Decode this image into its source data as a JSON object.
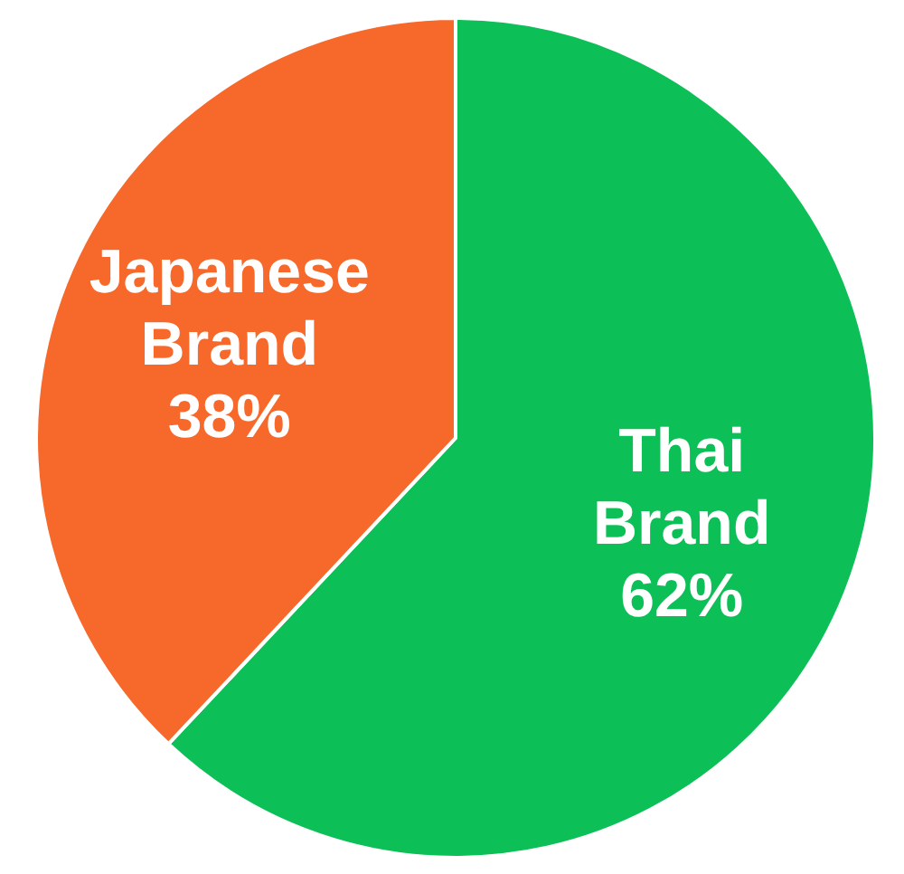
{
  "chart_data": {
    "type": "pie",
    "categories": [
      "Thai Brand",
      "Japanese Brand"
    ],
    "values": [
      62,
      38
    ],
    "colors": [
      "#0dbf57",
      "#f7692b"
    ],
    "value_labels": [
      "62%",
      "38%"
    ]
  }
}
